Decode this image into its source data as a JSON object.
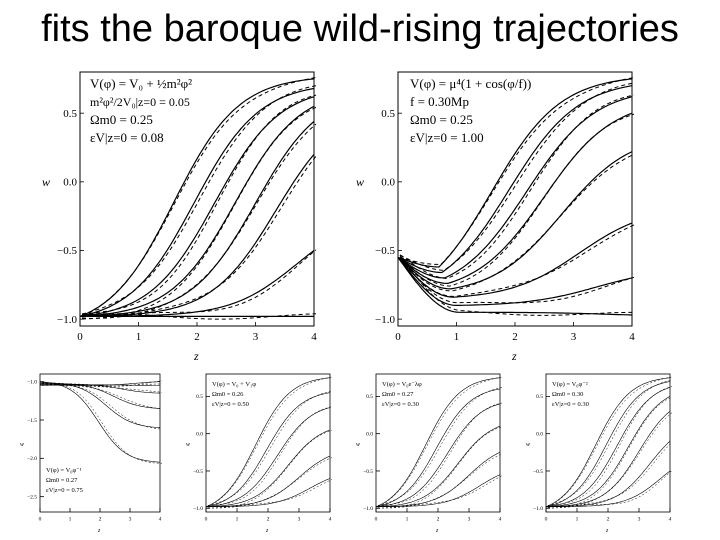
{
  "slide": {
    "title": "fits the baroque wild-rising trajectories"
  },
  "figure": {
    "panels": [
      {
        "id": "top-left",
        "ylabel": "w",
        "xlabel": "z",
        "xticks": [
          "0",
          "1",
          "2",
          "3",
          "4"
        ],
        "yticks": [
          "0.5",
          "0.0",
          "−0.5",
          "−1.0"
        ],
        "annotations": [
          "V(φ) = V₀ + ½m²φ²",
          "m²φ²/2V₀|z=0 = 0.05",
          "Ωm0 = 0.25",
          "εV|z=0 = 0.08"
        ]
      },
      {
        "id": "top-right",
        "ylabel": "w",
        "xlabel": "z",
        "xticks": [
          "0",
          "1",
          "2",
          "3",
          "4"
        ],
        "yticks": [
          "0.5",
          "0.0",
          "−0.5",
          "−1.0"
        ],
        "annotations": [
          "V(φ) = μ⁴(1 + cos(φ/f))",
          "f = 0.30Mp",
          "Ωm0 = 0.25",
          "εV|z=0 = 1.00"
        ]
      },
      {
        "id": "bottom-1",
        "ylabel": "w",
        "xlabel": "z",
        "xticks": [
          "0",
          "1",
          "2",
          "3",
          "4"
        ],
        "yticks": [
          "−1.0",
          "−1.5",
          "−2.0",
          "−2.5"
        ],
        "annotations": [
          "V(φ) = V₀φ⁻¹",
          "Ωm0 = 0.27",
          "εV|z=0 = 0.75"
        ]
      },
      {
        "id": "bottom-2",
        "ylabel": "w",
        "xlabel": "z",
        "xticks": [
          "0",
          "1",
          "2",
          "3",
          "4"
        ],
        "yticks": [
          "0.5",
          "0.0",
          "−0.5",
          "−1.0"
        ],
        "annotations": [
          "V(φ) = V₀ + V₁φ",
          "Ωm0 = 0.26",
          "εV|z=0 = 0.50"
        ]
      },
      {
        "id": "bottom-3",
        "ylabel": "w",
        "xlabel": "z",
        "xticks": [
          "0",
          "1",
          "2",
          "3",
          "4"
        ],
        "yticks": [
          "0.5",
          "0.0",
          "−0.5",
          "−1.0"
        ],
        "annotations": [
          "V(φ) = V₀e⁻λφ",
          "Ωm0 = 0.27",
          "εV|z=0 = 0.30"
        ]
      },
      {
        "id": "bottom-4",
        "ylabel": "w",
        "xlabel": "z",
        "xticks": [
          "0",
          "1",
          "2",
          "3",
          "4"
        ],
        "yticks": [
          "0.5",
          "0.0",
          "−0.5",
          "−1.0"
        ],
        "annotations": [
          "V(φ) = V₀φ⁻²",
          "Ωm0 = 0.30",
          "εV|z=0 = 0.30"
        ]
      }
    ]
  },
  "chart_data": [
    {
      "type": "line",
      "xlim": [
        0,
        4
      ],
      "ylim": [
        -1.05,
        0.8
      ],
      "series_shape": "sigmoid",
      "curves_z": [
        0,
        0.5,
        1,
        1.5,
        2,
        2.5,
        3,
        3.5,
        4
      ],
      "finals": [
        0.75,
        0.68,
        0.62,
        0.55,
        0.44,
        0.2,
        -0.5,
        -0.98
      ]
    },
    {
      "type": "line",
      "xlim": [
        0,
        4
      ],
      "ylim": [
        -1.05,
        0.8
      ],
      "series_shape": "dip-then-rise",
      "start": -0.55,
      "minimum_w": [
        -0.62,
        -0.66,
        -0.7,
        -0.74,
        -0.78,
        -0.84,
        -0.9
      ],
      "finals": [
        0.75,
        0.7,
        0.62,
        0.5,
        0.22,
        -0.3,
        -0.7,
        -0.97
      ]
    },
    {
      "type": "line",
      "xlim": [
        0,
        4
      ],
      "ylim": [
        -2.7,
        -0.9
      ],
      "series_shape": "falling",
      "finals": [
        -1.0,
        -1.05,
        -1.15,
        -1.35,
        -1.6,
        -2.05
      ]
    },
    {
      "type": "line",
      "xlim": [
        0,
        4
      ],
      "ylim": [
        -1.05,
        0.8
      ],
      "series_shape": "sigmoid",
      "finals": [
        0.75,
        0.55,
        0.35,
        0.05,
        -0.3,
        -0.6
      ]
    },
    {
      "type": "line",
      "xlim": [
        0,
        4
      ],
      "ylim": [
        -1.05,
        0.8
      ],
      "series_shape": "sigmoid",
      "finals": [
        0.75,
        0.6,
        0.4,
        0.1,
        -0.25,
        -0.55
      ]
    },
    {
      "type": "line",
      "xlim": [
        0,
        4
      ],
      "ylim": [
        -1.05,
        0.8
      ],
      "series_shape": "sigmoid",
      "finals": [
        0.75,
        0.7,
        0.62,
        0.5,
        0.3,
        -0.1,
        -0.5
      ]
    }
  ]
}
